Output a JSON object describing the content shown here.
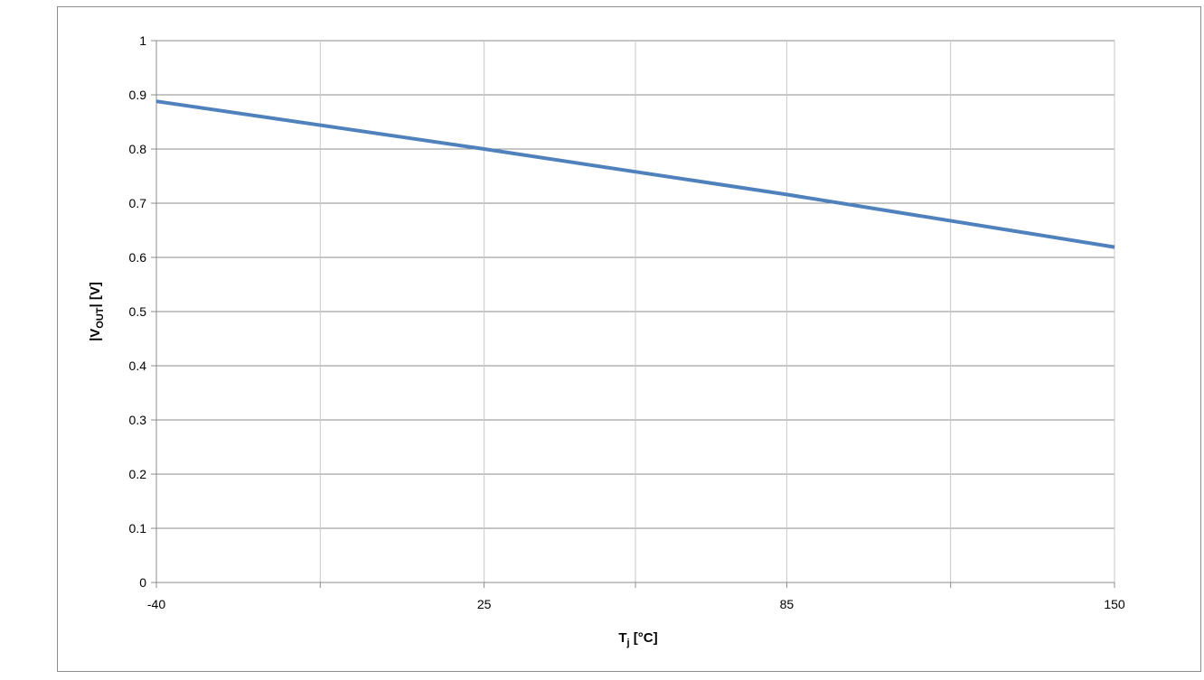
{
  "chart_data": {
    "type": "line",
    "title": "",
    "x_axis": {
      "label_main": "T",
      "label_sub": "j",
      "label_tail": " [°C]",
      "ticks": [
        -40,
        25,
        85,
        150
      ],
      "xlim": [
        -40,
        150
      ],
      "gridlines": [
        -40,
        -7.5,
        25,
        55,
        85,
        117.5,
        150
      ],
      "grid": true
    },
    "y_axis": {
      "label_head": "|V",
      "label_sub": "OUT",
      "label_tail": "| [V]",
      "ticks": [
        0,
        0.1,
        0.2,
        0.3,
        0.4,
        0.5,
        0.6,
        0.7,
        0.8,
        0.9,
        1
      ],
      "tick_labels": [
        "0",
        "0.1",
        "0.2",
        "0.3",
        "0.4",
        "0.5",
        "0.6",
        "0.7",
        "0.8",
        "0.9",
        "1"
      ],
      "ylim": [
        0,
        1
      ],
      "grid": true
    },
    "series": [
      {
        "color": "#4f81bd",
        "x": [
          -40,
          25,
          85,
          150
        ],
        "y": [
          0.888,
          0.8,
          0.716,
          0.619
        ]
      }
    ],
    "legend": "none"
  }
}
